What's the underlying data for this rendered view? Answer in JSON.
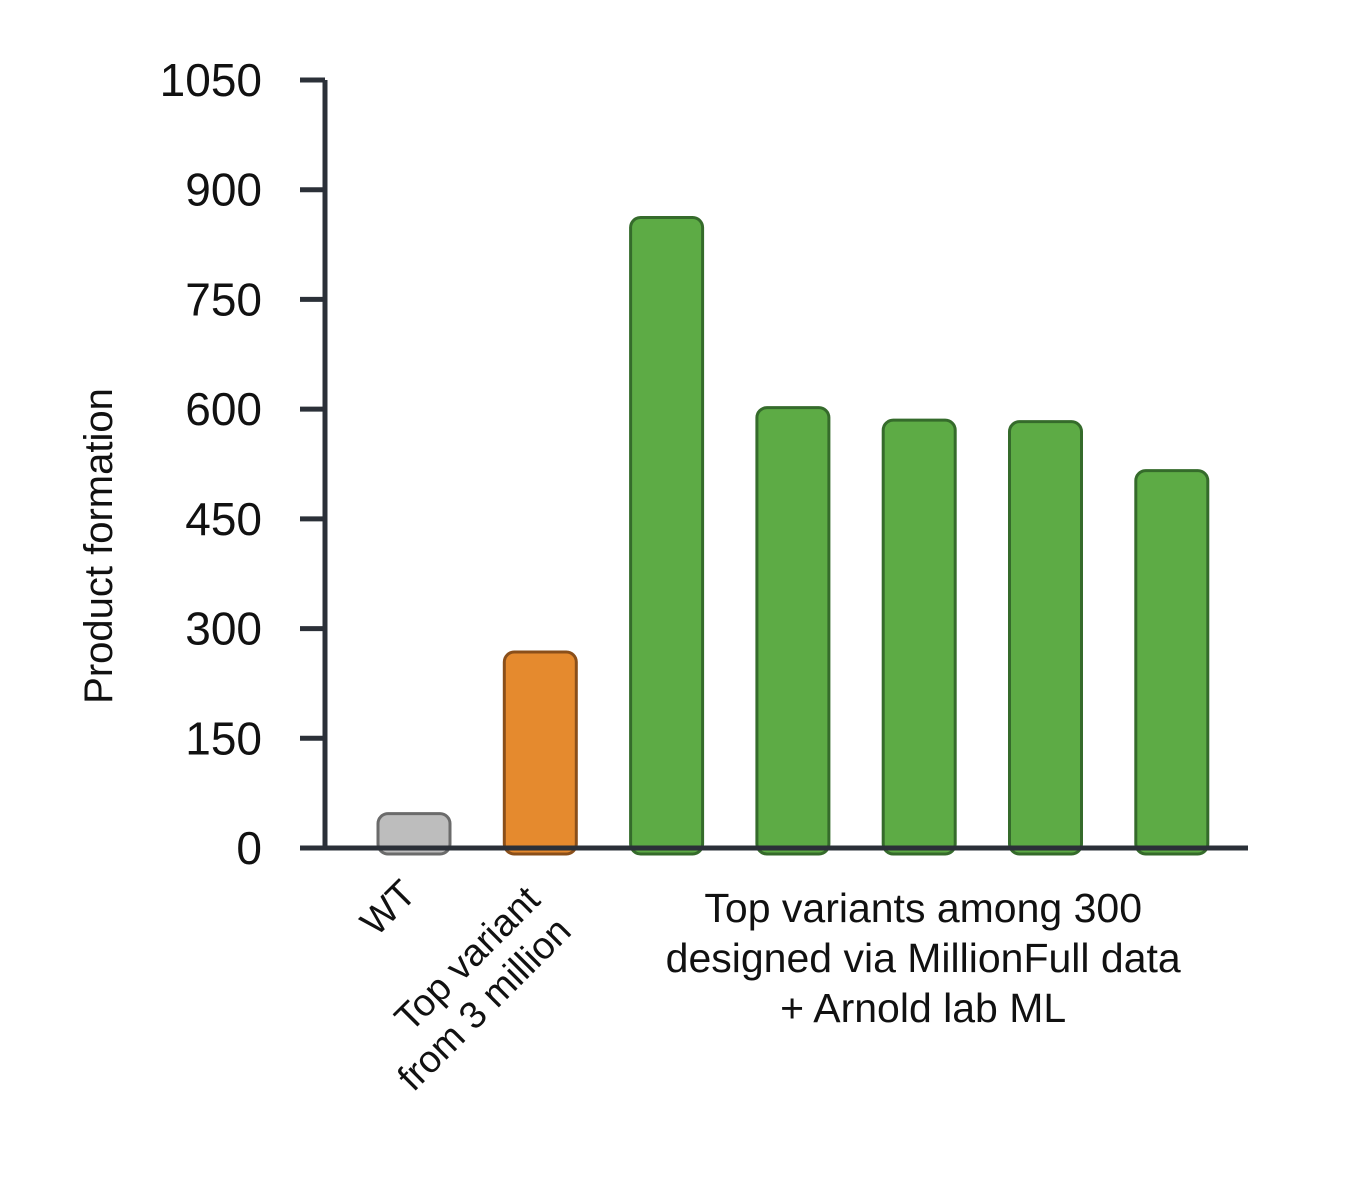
{
  "chart_data": {
    "type": "bar",
    "title": "",
    "xlabel": "",
    "ylabel": "Product formation",
    "ylim": [
      0,
      1050
    ],
    "yticks": [
      0,
      150,
      300,
      450,
      600,
      750,
      900,
      1050
    ],
    "grid": false,
    "categories": [
      "WT",
      "Top variant\nfrom 3 million",
      "",
      "",
      "",
      "",
      ""
    ],
    "values": [
      47,
      268,
      862,
      602,
      585,
      583,
      516
    ],
    "colors": [
      "#bdbdbd",
      "#e58a2e",
      "#5dab45",
      "#5dab45",
      "#5dab45",
      "#5dab45",
      "#5dab45"
    ],
    "edge_colors": [
      "#6b6b6b",
      "#8a4f1a",
      "#356b2b",
      "#356b2b",
      "#356b2b",
      "#356b2b",
      "#356b2b"
    ],
    "group_label": {
      "lines": [
        "Top variants among 300",
        "designed via MillionFull data",
        "+ Arnold lab ML"
      ],
      "spans_categories": [
        2,
        6
      ]
    },
    "axis_color": "#2b3038"
  }
}
